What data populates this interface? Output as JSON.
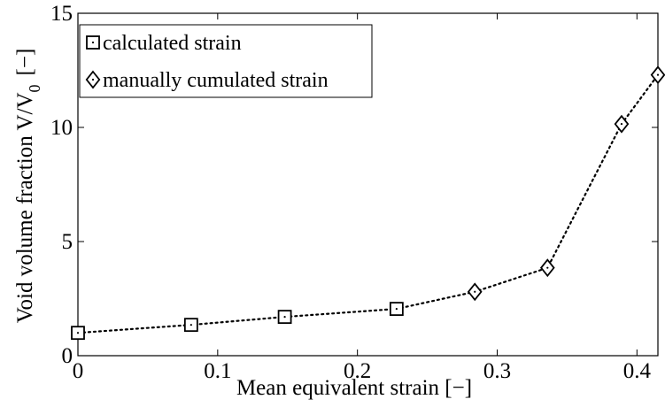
{
  "chart_data": {
    "type": "line",
    "xlabel": "Mean equivalent strain [−]",
    "ylabel_main": "Void volume fraction V/V",
    "ylabel_sub": "0",
    "ylabel_unit": "[−]",
    "xlim": [
      0,
      0.415
    ],
    "ylim": [
      0,
      15
    ],
    "xticks": [
      0,
      0.1,
      0.2,
      0.3,
      0.4
    ],
    "xtick_labels": [
      "0",
      "0.1",
      "0.2",
      "0.3",
      "0.4"
    ],
    "yticks": [
      0,
      5,
      10,
      15
    ],
    "ytick_labels": [
      "0",
      "5",
      "10",
      "15"
    ],
    "grid": false,
    "legend_position": "top-left",
    "line_style": "dotted",
    "series": [
      {
        "name": "calculated strain",
        "marker": "square",
        "x": [
          0,
          0.081,
          0.148,
          0.228
        ],
        "y": [
          1.0,
          1.35,
          1.7,
          2.05
        ]
      },
      {
        "name": "manually cumulated strain",
        "marker": "diamond",
        "x": [
          0.284,
          0.336,
          0.389,
          0.415
        ],
        "y": [
          2.8,
          3.85,
          10.15,
          12.3
        ]
      }
    ]
  }
}
